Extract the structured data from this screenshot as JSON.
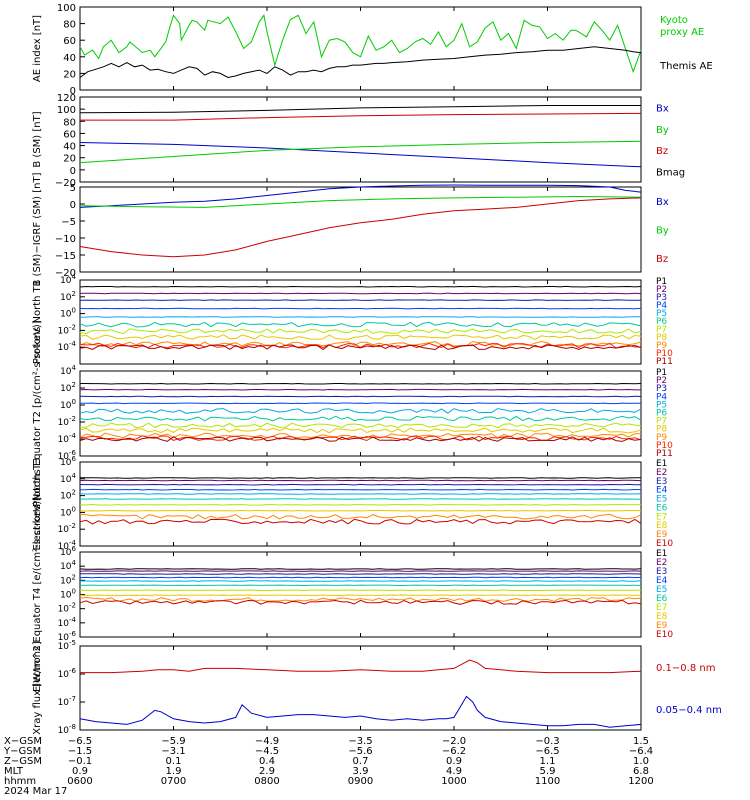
{
  "colors": {
    "green": "#00cc00",
    "black": "#000000",
    "red": "#cc0000",
    "blue": "#0000cc",
    "bands": [
      "#000000",
      "#6a006a",
      "#1a1aa0",
      "#0040ff",
      "#00aaee",
      "#00c8a0",
      "#b0e600",
      "#e6c800",
      "#ff8800",
      "#ff2200",
      "#aa0000"
    ]
  },
  "chart_data": [
    {
      "type": "line",
      "ylabel": "AE index [nT]",
      "ylim": [
        0,
        100
      ],
      "yticks": [
        "0",
        "20",
        "40",
        "60",
        "80",
        "100"
      ],
      "series": [
        {
          "name": "Kyoto proxy AE",
          "label_lines": [
            "Kyoto",
            "proxy AE"
          ],
          "color": "#00cc00",
          "x": [
            0,
            3,
            8,
            12,
            15,
            20,
            25,
            30,
            32,
            40,
            45,
            48,
            50,
            55,
            58,
            60,
            64,
            65,
            70,
            72,
            75,
            80,
            82,
            90,
            95,
            100,
            105,
            110,
            115,
            118,
            120,
            125,
            130,
            135,
            140,
            145,
            150,
            155,
            160,
            165,
            170,
            175,
            180,
            185,
            190,
            195,
            200,
            205,
            210,
            215,
            220,
            225,
            230,
            235,
            240,
            245,
            250,
            255,
            260,
            265,
            270,
            275,
            280,
            285,
            290,
            295,
            300,
            305,
            310,
            315,
            318,
            320,
            325,
            330,
            335,
            340,
            345,
            350,
            355,
            360
          ],
          "values": [
            52,
            42,
            48,
            38,
            52,
            60,
            45,
            52,
            58,
            45,
            48,
            40,
            45,
            58,
            78,
            90,
            80,
            60,
            78,
            84,
            82,
            72,
            84,
            80,
            88,
            70,
            50,
            58,
            82,
            90,
            70,
            30,
            60,
            85,
            90,
            68,
            82,
            40,
            60,
            62,
            58,
            45,
            40,
            65,
            48,
            52,
            60,
            45,
            50,
            58,
            62,
            55,
            70,
            52,
            60,
            80,
            52,
            58,
            75,
            82,
            60,
            68,
            50,
            84,
            78,
            76,
            62,
            68,
            60,
            72,
            72,
            70,
            64,
            82,
            72,
            60,
            78,
            50,
            22,
            48
          ]
        },
        {
          "name": "Themis AE",
          "color": "#000000",
          "x": [
            0,
            5,
            10,
            15,
            20,
            25,
            30,
            35,
            40,
            45,
            50,
            55,
            60,
            65,
            70,
            75,
            80,
            85,
            90,
            95,
            100,
            105,
            110,
            115,
            120,
            125,
            130,
            135,
            140,
            145,
            150,
            155,
            160,
            165,
            170,
            175,
            180,
            185,
            190,
            195,
            200,
            210,
            220,
            230,
            240,
            250,
            260,
            270,
            280,
            290,
            300,
            310,
            320,
            330,
            340,
            350,
            355,
            360
          ],
          "values": [
            15,
            22,
            25,
            28,
            32,
            28,
            33,
            28,
            30,
            24,
            25,
            22,
            20,
            24,
            28,
            26,
            18,
            22,
            20,
            15,
            17,
            20,
            22,
            24,
            20,
            28,
            24,
            18,
            22,
            22,
            24,
            22,
            26,
            28,
            28,
            30,
            30,
            31,
            32,
            32,
            33,
            34,
            36,
            37,
            38,
            40,
            42,
            43,
            45,
            46,
            48,
            48,
            50,
            52,
            50,
            48,
            46,
            45
          ]
        }
      ]
    },
    {
      "type": "line",
      "ylabel": "B (SM) [nT]",
      "ylim": [
        -20,
        120
      ],
      "yticks": [
        "−20",
        "0",
        "20",
        "40",
        "60",
        "80",
        "100",
        "120"
      ],
      "series": [
        {
          "name": "Bx",
          "color": "#0000cc",
          "x": [
            0,
            60,
            120,
            180,
            240,
            300,
            360
          ],
          "values": [
            45,
            42,
            36,
            28,
            20,
            12,
            5
          ]
        },
        {
          "name": "By",
          "color": "#00cc00",
          "x": [
            0,
            60,
            120,
            180,
            240,
            300,
            360
          ],
          "values": [
            12,
            22,
            32,
            38,
            42,
            45,
            47
          ]
        },
        {
          "name": "Bz",
          "color": "#cc0000",
          "x": [
            0,
            60,
            120,
            180,
            240,
            300,
            360
          ],
          "values": [
            82,
            82,
            86,
            89,
            91,
            92,
            93
          ]
        },
        {
          "name": "Bmag",
          "color": "#000000",
          "x": [
            0,
            60,
            120,
            180,
            240,
            300,
            360
          ],
          "values": [
            94,
            95,
            98,
            102,
            104,
            106,
            106
          ]
        }
      ]
    },
    {
      "type": "line",
      "ylabel": "B (SM)−IGRF (SM) [nT]",
      "ylim": [
        -20,
        5
      ],
      "yticks": [
        "−20",
        "−15",
        "−10",
        "−5",
        "0",
        "5"
      ],
      "series": [
        {
          "name": "Bx",
          "color": "#0000cc",
          "x": [
            0,
            20,
            40,
            60,
            80,
            100,
            120,
            140,
            160,
            180,
            200,
            220,
            240,
            260,
            280,
            300,
            320,
            340,
            350,
            360
          ],
          "values": [
            -1,
            -0.5,
            0,
            0.5,
            0.8,
            1.5,
            2.5,
            3.5,
            4.5,
            5,
            5.3,
            5.5,
            5.6,
            5.5,
            5.5,
            5.5,
            5.4,
            5,
            4,
            3.5
          ]
        },
        {
          "name": "By",
          "color": "#00cc00",
          "x": [
            0,
            40,
            80,
            120,
            160,
            200,
            240,
            280,
            320,
            360
          ],
          "values": [
            -0.5,
            -0.8,
            -1,
            0,
            1,
            1.5,
            1.8,
            2,
            2.2,
            2
          ]
        },
        {
          "name": "Bz",
          "color": "#cc0000",
          "x": [
            0,
            20,
            40,
            60,
            80,
            100,
            120,
            140,
            160,
            180,
            200,
            220,
            240,
            260,
            280,
            300,
            320,
            340,
            360
          ],
          "values": [
            -12.5,
            -14,
            -15,
            -15.5,
            -15,
            -13.5,
            -11,
            -9,
            -7,
            -5.5,
            -4.5,
            -3,
            -2,
            -1.5,
            -1,
            0,
            1,
            1.5,
            1.8
          ]
        }
      ]
    },
    {
      "type": "line",
      "ylabel": "Protons North T1",
      "ylim": [
        -6,
        4
      ],
      "yscale": "log",
      "ytick_exponents": [
        -4,
        -2,
        0,
        2,
        4
      ],
      "series": [
        {
          "name": "P1",
          "color": "#000000",
          "level": 3.2
        },
        {
          "name": "P2",
          "color": "#6a006a",
          "level": 2.4
        },
        {
          "name": "P3",
          "color": "#1a1aa0",
          "level": 1.6
        },
        {
          "name": "P4",
          "color": "#0040ff",
          "level": 0.6
        },
        {
          "name": "P5",
          "color": "#00aaee",
          "level": -0.4
        },
        {
          "name": "P6",
          "color": "#00c8a0",
          "level": -1.3
        },
        {
          "name": "P7",
          "color": "#b0e600",
          "level": -2.1
        },
        {
          "name": "P8",
          "color": "#e6c800",
          "level": -2.8
        },
        {
          "name": "P9",
          "color": "#ff8800",
          "level": -3.6
        },
        {
          "name": "P10",
          "color": "#ff2200",
          "level": -3.8
        },
        {
          "name": "P11",
          "color": "#aa0000",
          "level": -4.0
        }
      ]
    },
    {
      "type": "line",
      "ylabel": "Protons Equator T2 [p/(cm²-s-sr-keV)]",
      "ylim": [
        -6,
        4
      ],
      "yscale": "log",
      "ytick_exponents": [
        -6,
        -4,
        -2,
        0,
        2,
        4
      ],
      "series": [
        {
          "name": "P1",
          "color": "#000000",
          "level": 2.5
        },
        {
          "name": "P2",
          "color": "#6a006a",
          "level": 1.8
        },
        {
          "name": "P3",
          "color": "#1a1aa0",
          "level": 1.0
        },
        {
          "name": "P4",
          "color": "#0040ff",
          "level": 0.2
        },
        {
          "name": "P5",
          "color": "#00aaee",
          "level": -0.7
        },
        {
          "name": "P6",
          "color": "#00c8a0",
          "level": -1.6
        },
        {
          "name": "P7",
          "color": "#b0e600",
          "level": -2.4
        },
        {
          "name": "P8",
          "color": "#e6c800",
          "level": -3.0
        },
        {
          "name": "P9",
          "color": "#ff8800",
          "level": -3.6
        },
        {
          "name": "P10",
          "color": "#ff2200",
          "level": -3.9
        },
        {
          "name": "P11",
          "color": "#aa0000",
          "level": -4.0
        }
      ]
    },
    {
      "type": "line",
      "ylabel": "Electrons North T3",
      "ylim": [
        -4,
        6
      ],
      "yscale": "log",
      "ytick_exponents": [
        -4,
        -2,
        0,
        2,
        4,
        6
      ],
      "series": [
        {
          "name": "E1",
          "color": "#000000",
          "level": 4.1
        },
        {
          "name": "E2",
          "color": "#6a006a",
          "level": 3.8
        },
        {
          "name": "E3",
          "color": "#1a1aa0",
          "level": 3.3
        },
        {
          "name": "E4",
          "color": "#0040ff",
          "level": 2.7
        },
        {
          "name": "E5",
          "color": "#00aaee",
          "level": 2.2
        },
        {
          "name": "E6",
          "color": "#00c8a0",
          "level": 1.6
        },
        {
          "name": "E7",
          "color": "#b0e600",
          "level": 0.9
        },
        {
          "name": "E8",
          "color": "#e6c800",
          "level": 0.2
        },
        {
          "name": "E9",
          "color": "#ff8800",
          "level": -0.5
        },
        {
          "name": "E10",
          "color": "#cc0000",
          "level": -1.1
        }
      ]
    },
    {
      "type": "line",
      "ylabel": "Electrons Equator T4 [e/(cm²-s-sr-keV)]",
      "ylim": [
        -6,
        6
      ],
      "yscale": "log",
      "ytick_exponents": [
        -6,
        -4,
        -2,
        0,
        2,
        4,
        6
      ],
      "series": [
        {
          "name": "E1",
          "color": "#000000",
          "level": 3.6
        },
        {
          "name": "E2",
          "color": "#6a006a",
          "level": 3.3
        },
        {
          "name": "E3",
          "color": "#1a1aa0",
          "level": 2.9
        },
        {
          "name": "E4",
          "color": "#0040ff",
          "level": 2.4
        },
        {
          "name": "E5",
          "color": "#00aaee",
          "level": 1.9
        },
        {
          "name": "E6",
          "color": "#00c8a0",
          "level": 1.3
        },
        {
          "name": "E7",
          "color": "#b0e600",
          "level": 0.6
        },
        {
          "name": "E8",
          "color": "#e6c800",
          "level": -0.1
        },
        {
          "name": "E9",
          "color": "#ff8800",
          "level": -0.7
        },
        {
          "name": "E10",
          "color": "#cc0000",
          "level": -1.1
        }
      ]
    },
    {
      "type": "line",
      "ylabel": "Xray flux [W/m^2]",
      "ylim": [
        -8,
        -5
      ],
      "yscale": "log",
      "ytick_exponents": [
        -8,
        -7,
        -6,
        -5
      ],
      "series": [
        {
          "name": "0.1−0.8 nm",
          "color": "#cc0000",
          "x": [
            0,
            20,
            40,
            50,
            60,
            70,
            80,
            100,
            120,
            140,
            160,
            180,
            200,
            220,
            230,
            240,
            250,
            255,
            260,
            270,
            280,
            300,
            320,
            340,
            360
          ],
          "values": [
            -5.95,
            -5.95,
            -5.9,
            -5.85,
            -5.85,
            -5.9,
            -5.8,
            -5.8,
            -5.85,
            -5.9,
            -5.9,
            -5.85,
            -5.9,
            -5.9,
            -5.85,
            -5.8,
            -5.5,
            -5.6,
            -5.8,
            -5.85,
            -5.9,
            -5.95,
            -5.95,
            -5.95,
            -5.9
          ]
        },
        {
          "name": "0.05−0.4 nm",
          "color": "#0000cc",
          "x": [
            0,
            10,
            20,
            30,
            40,
            48,
            52,
            60,
            70,
            80,
            90,
            100,
            104,
            110,
            120,
            130,
            140,
            150,
            160,
            170,
            180,
            190,
            200,
            210,
            220,
            230,
            235,
            240,
            248,
            252,
            255,
            260,
            270,
            280,
            290,
            300,
            310,
            320,
            330,
            340,
            350,
            360
          ],
          "values": [
            -7.6,
            -7.7,
            -7.75,
            -7.8,
            -7.65,
            -7.3,
            -7.35,
            -7.6,
            -7.7,
            -7.75,
            -7.7,
            -7.55,
            -7.1,
            -7.4,
            -7.55,
            -7.5,
            -7.45,
            -7.45,
            -7.5,
            -7.55,
            -7.5,
            -7.6,
            -7.65,
            -7.6,
            -7.65,
            -7.6,
            -7.6,
            -7.55,
            -6.8,
            -7.0,
            -7.3,
            -7.55,
            -7.7,
            -7.75,
            -7.8,
            -7.85,
            -7.85,
            -7.8,
            -7.8,
            -7.9,
            -7.85,
            -7.8
          ]
        }
      ]
    }
  ],
  "xaxis": {
    "row_labels": [
      "X−GSM",
      "Y−GSM",
      "Z−GSM",
      "MLT",
      "hhmm",
      "2024 Mar 17"
    ],
    "ticks": [
      {
        "x": 0,
        "xgsm": "−6.5",
        "ygsm": "−1.5",
        "zgsm": "−0.1",
        "mlt": "0.9",
        "hhmm": "0600"
      },
      {
        "x": 60,
        "xgsm": "−5.9",
        "ygsm": "−3.1",
        "zgsm": "0.1",
        "mlt": "1.9",
        "hhmm": "0700"
      },
      {
        "x": 120,
        "xgsm": "−4.9",
        "ygsm": "−4.5",
        "zgsm": "0.4",
        "mlt": "2.9",
        "hhmm": "0800"
      },
      {
        "x": 180,
        "xgsm": "−3.5",
        "ygsm": "−5.6",
        "zgsm": "0.7",
        "mlt": "3.9",
        "hhmm": "0900"
      },
      {
        "x": 240,
        "xgsm": "−2.0",
        "ygsm": "−6.2",
        "zgsm": "0.9",
        "mlt": "4.9",
        "hhmm": "1000"
      },
      {
        "x": 300,
        "xgsm": "−0.3",
        "ygsm": "−6.5",
        "zgsm": "1.1",
        "mlt": "5.9",
        "hhmm": "1100"
      },
      {
        "x": 360,
        "xgsm": "1.5",
        "ygsm": "−6.4",
        "zgsm": "1.0",
        "mlt": "6.8",
        "hhmm": "1200"
      }
    ]
  }
}
